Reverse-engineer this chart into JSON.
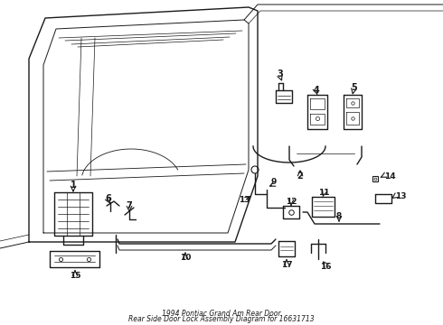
{
  "bg_color": "#ffffff",
  "line_color": "#1a1a1a",
  "title_line1": "1994 Pontiac Grand Am Rear Door",
  "title_line2": "Rear Side Door Lock Assembly Diagram for 16631713",
  "figw": 4.9,
  "figh": 3.6,
  "dpi": 100
}
